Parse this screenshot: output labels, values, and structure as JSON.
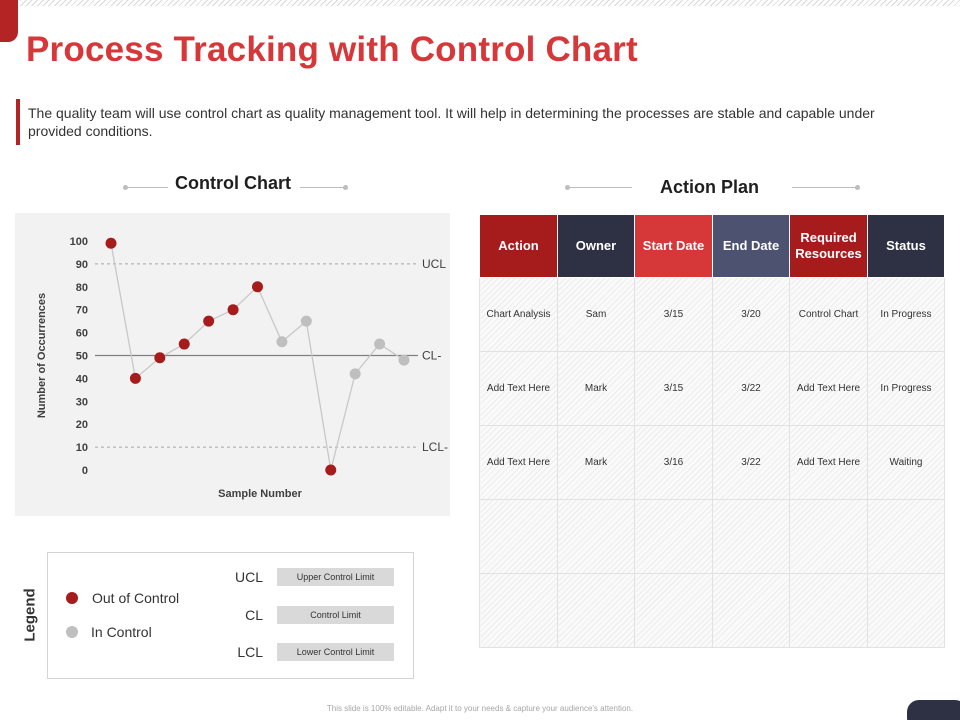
{
  "title": "Process Tracking with Control Chart",
  "description": "The quality team will use control chart as quality management tool. It will help in determining the processes are stable and capable under provided conditions.",
  "sections": {
    "control_chart": "Control Chart",
    "action_plan": "Action Plan"
  },
  "colors": {
    "accent": "#d6383a",
    "out_of_control": "#a61c1c",
    "in_control": "#bfbfbf",
    "navy": "#2e3144",
    "slate": "#4d5271"
  },
  "chart_data": {
    "type": "line",
    "title": "Control Chart",
    "xlabel": "Sample Number",
    "ylabel": "Number of Occurrences",
    "ylim": [
      0,
      100
    ],
    "yticks": [
      0,
      10,
      20,
      30,
      40,
      50,
      60,
      70,
      80,
      90,
      100
    ],
    "x": [
      1,
      2,
      3,
      4,
      5,
      6,
      7,
      8,
      9,
      10,
      11,
      12,
      13
    ],
    "values": [
      99,
      40,
      49,
      55,
      65,
      70,
      80,
      56,
      65,
      0,
      42,
      55,
      48
    ],
    "status": [
      "out",
      "out",
      "out",
      "out",
      "out",
      "out",
      "out",
      "in",
      "in",
      "out",
      "in",
      "in",
      "in"
    ],
    "control_lines": [
      {
        "name": "UCL",
        "label": "UCL",
        "value": 90,
        "style": "dashed"
      },
      {
        "name": "CL",
        "label": "CL-",
        "value": 50,
        "style": "solid"
      },
      {
        "name": "LCL",
        "label": "LCL-",
        "value": 10,
        "style": "dashed"
      }
    ],
    "grid": false
  },
  "legend": {
    "title": "Legend",
    "out_of_control": "Out of Control",
    "in_control": "In Control",
    "ucl": "UCL",
    "ucl_desc": "Upper Control Limit",
    "cl": "CL",
    "cl_desc": "Control Limit",
    "lcl": "LCL",
    "lcl_desc": "Lower Control Limit"
  },
  "action_plan": {
    "headers": [
      {
        "label": "Action",
        "color": "#a61c1c"
      },
      {
        "label": "Owner",
        "color": "#2e3144"
      },
      {
        "label": "Start Date",
        "color": "#d6383a"
      },
      {
        "label": "End Date",
        "color": "#4d5271"
      },
      {
        "label": "Required Resources",
        "color": "#a61c1c"
      },
      {
        "label": "Status",
        "color": "#2e3144"
      }
    ],
    "rows": [
      [
        "Chart Analysis",
        "Sam",
        "3/15",
        "3/20",
        "Control Chart",
        "In Progress"
      ],
      [
        "Add Text Here",
        "Mark",
        "3/15",
        "3/22",
        "Add Text Here",
        "In Progress"
      ],
      [
        "Add Text Here",
        "Mark",
        "3/16",
        "3/22",
        "Add Text Here",
        "Waiting"
      ],
      [
        "",
        "",
        "",
        "",
        "",
        ""
      ],
      [
        "",
        "",
        "",
        "",
        "",
        ""
      ]
    ]
  },
  "footer": "This slide is 100% editable. Adapt it to your needs & capture your audience's attention."
}
